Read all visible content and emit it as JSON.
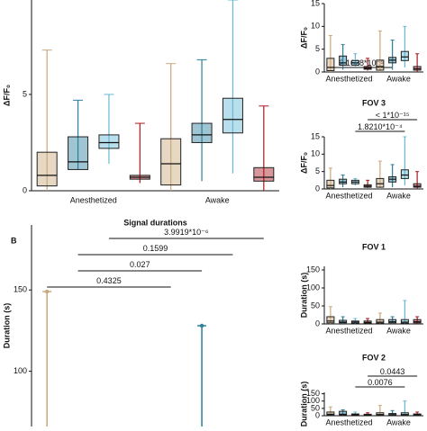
{
  "chart_data": [
    {
      "type": "box",
      "y_label": "ΔF/F₀",
      "ylim": [
        0,
        9.9
      ],
      "yticks": [
        0,
        5
      ],
      "groups": [
        "Anesthetized",
        "Awake"
      ],
      "colors": [
        "#c9a97a",
        "#2a7f9e",
        "#67b8d4",
        "#a8191e",
        "#c9a97a",
        "#2a7f9e",
        "#67b8d4",
        "#a8191e"
      ],
      "boxes": [
        [
          0,
          0.25,
          0.8,
          2.0,
          7.3
        ],
        [
          1.1,
          1.1,
          1.5,
          2.8,
          4.7
        ],
        [
          1.4,
          2.2,
          2.5,
          2.9,
          5.0
        ],
        [
          0.4,
          0.6,
          0.7,
          0.8,
          3.5
        ],
        [
          0,
          0.3,
          1.4,
          2.7,
          6.6
        ],
        [
          0.5,
          2.5,
          2.9,
          3.5,
          6.8
        ],
        [
          0.9,
          3.0,
          3.7,
          4.8,
          9.9
        ],
        [
          0,
          0.5,
          0.7,
          1.2,
          4.4
        ]
      ]
    },
    {
      "type": "whisker",
      "panel_label": "B",
      "title": "Signal durations",
      "y_label": "Duration (s)",
      "ylim": [
        66,
        190
      ],
      "yticks": [
        100,
        150
      ],
      "colors": [
        "#c9a97a",
        "#2a7f9e",
        "#67b8d4",
        "#a8191e",
        "#c9a97a",
        "#2a7f9e",
        "#67b8d4",
        "#a8191e"
      ],
      "maxima": [
        149,
        null,
        null,
        null,
        null,
        128,
        null,
        null
      ],
      "annotations": [
        {
          "label": "3.9919*10⁻⁶",
          "from": 2,
          "to": 7
        },
        {
          "label": "0.1599",
          "from": 1,
          "to": 6
        },
        {
          "label": "0.027",
          "from": 1,
          "to": 5
        },
        {
          "label": "0.4325",
          "from": 0,
          "to": 4
        }
      ]
    },
    {
      "type": "box",
      "y_label": "ΔF/F₀",
      "ylim": [
        0,
        15
      ],
      "yticks": [
        0,
        5,
        10,
        15
      ],
      "groups": [
        "Anesthetized",
        "Awake"
      ],
      "colors": [
        "#c9a97a",
        "#2a7f9e",
        "#67b8d4",
        "#a8191e",
        "#c9a97a",
        "#2a7f9e",
        "#67b8d4",
        "#a8191e"
      ],
      "boxes": [
        [
          0,
          0.3,
          1,
          3,
          8
        ],
        [
          0.5,
          1.5,
          2,
          3.5,
          6
        ],
        [
          1,
          1.5,
          2,
          2.5,
          4
        ],
        [
          0.3,
          0.6,
          0.8,
          1.2,
          3
        ],
        [
          0,
          0.4,
          1.2,
          2.6,
          9
        ],
        [
          0.5,
          2,
          2.6,
          3.2,
          7
        ],
        [
          1,
          2.5,
          3.3,
          4.5,
          10
        ],
        [
          0,
          0.4,
          0.7,
          1.2,
          4
        ]
      ],
      "annotations": [
        {
          "label": "2.1628*10⁻⁵",
          "from": 0,
          "to": 5
        }
      ]
    },
    {
      "type": "box",
      "title": "FOV 3",
      "y_label": "ΔF/F₀",
      "ylim": [
        0,
        15
      ],
      "yticks": [
        0,
        5,
        10,
        15
      ],
      "groups": [
        "Anesthetized",
        "Awake"
      ],
      "colors": [
        "#c9a97a",
        "#2a7f9e",
        "#67b8d4",
        "#a8191e",
        "#c9a97a",
        "#2a7f9e",
        "#67b8d4",
        "#a8191e"
      ],
      "boxes": [
        [
          0,
          0.3,
          1,
          2.5,
          6
        ],
        [
          0.5,
          1.5,
          2,
          2.8,
          4
        ],
        [
          1,
          1.5,
          2,
          2.5,
          3
        ],
        [
          0.3,
          0.5,
          0.8,
          1.2,
          2.5
        ],
        [
          0,
          0.5,
          1.5,
          3,
          8
        ],
        [
          0.5,
          2,
          2.8,
          3.5,
          7
        ],
        [
          1,
          3,
          4,
          5.5,
          15
        ],
        [
          0,
          0.5,
          0.8,
          1.5,
          5
        ]
      ],
      "annotations": [
        {
          "label": "< 1*10⁻¹⁵",
          "from": 3,
          "to": 7
        },
        {
          "label": "1.8210*10⁻⁴",
          "from": 2,
          "to": 6
        }
      ]
    },
    {
      "type": "box",
      "title": "FOV 1",
      "y_label": "Duration (s)",
      "ylim": [
        0,
        160
      ],
      "yticks": [
        0,
        50,
        100,
        150
      ],
      "groups": [
        "Anesthetized",
        "Awake"
      ],
      "colors": [
        "#c9a97a",
        "#2a7f9e",
        "#67b8d4",
        "#a8191e",
        "#c9a97a",
        "#2a7f9e",
        "#67b8d4",
        "#a8191e"
      ],
      "boxes": [
        [
          0,
          3,
          8,
          20,
          48
        ],
        [
          0,
          3,
          5,
          10,
          20
        ],
        [
          0,
          2,
          5,
          8,
          15
        ],
        [
          0,
          2,
          4,
          8,
          15
        ],
        [
          0,
          2,
          5,
          12,
          30
        ],
        [
          0,
          3,
          6,
          12,
          20
        ],
        [
          0,
          2,
          5,
          12,
          65
        ],
        [
          0,
          3,
          6,
          12,
          20
        ]
      ]
    },
    {
      "type": "box",
      "title": "FOV 2",
      "y_label": "Duration (s)",
      "ylim": [
        0,
        160
      ],
      "yticks": [
        0,
        50,
        100,
        150
      ],
      "groups": [
        "Anesthetized",
        "Awake"
      ],
      "colors": [
        "#c9a97a",
        "#2a7f9e",
        "#67b8d4",
        "#a8191e",
        "#c9a97a",
        "#2a7f9e",
        "#67b8d4",
        "#a8191e"
      ],
      "boxes": [
        [
          0,
          3,
          10,
          25,
          60
        ],
        [
          0,
          5,
          10,
          30,
          40
        ],
        [
          0,
          3,
          6,
          12,
          25
        ],
        [
          0,
          2,
          5,
          10,
          20
        ],
        [
          0,
          3,
          8,
          20,
          70
        ],
        [
          0,
          3,
          7,
          15,
          35
        ],
        [
          0,
          3,
          8,
          20,
          100
        ],
        [
          0,
          3,
          6,
          12,
          25
        ]
      ],
      "annotations": [
        {
          "label": "0.0443",
          "from": 3,
          "to": 7
        },
        {
          "label": "0.0076",
          "from": 2,
          "to": 6
        }
      ]
    }
  ]
}
